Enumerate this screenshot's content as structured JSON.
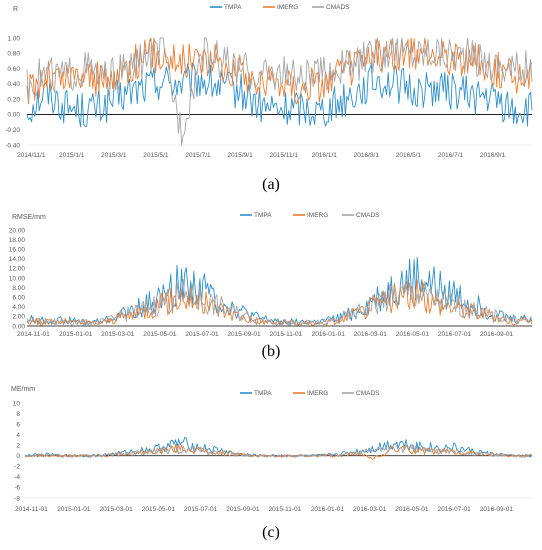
{
  "colors": {
    "TMPA": "#2e8fcc",
    "IMERG": "#ed7d31",
    "CMADS": "#a5a5a5",
    "axis": "#000000",
    "tick_text": "#595959"
  },
  "captions": [
    "(a)",
    "(b)",
    "(c)"
  ],
  "chart_data": [
    {
      "type": "line",
      "title": "",
      "ylabel": "R",
      "ylim": [
        -0.4,
        1.0
      ],
      "yticks": [
        "1.00",
        "0.80",
        "0.60",
        "0.40",
        "0.20",
        "0.00",
        "-0.20",
        "-0.40"
      ],
      "x_range": [
        "2014-11-01",
        "2016-12-31"
      ],
      "xtick_labels": [
        "2014/11/1",
        "2015/1/1",
        "2015/3/1",
        "2015/5/1",
        "2015/7/1",
        "2015/9/1",
        "2015/11/1",
        "2016/1/1",
        "2016/3/1",
        "2016/5/1",
        "2016/7/1",
        "2016/9/1"
      ],
      "legend": "top-center",
      "series": [
        {
          "name": "TMPA",
          "x": [
            "2014-11-01",
            "2014-12-01",
            "2015-01-01",
            "2015-02-01",
            "2015-03-01",
            "2015-04-01",
            "2015-05-01",
            "2015-06-01",
            "2015-07-01",
            "2015-08-01",
            "2015-09-01",
            "2015-10-01",
            "2015-11-01",
            "2015-12-01",
            "2016-01-01",
            "2016-02-01",
            "2016-03-01",
            "2016-04-01",
            "2016-05-01",
            "2016-06-01",
            "2016-07-01",
            "2016-08-01",
            "2016-09-01",
            "2016-10-01",
            "2016-11-01",
            "2016-12-01"
          ],
          "values": [
            0.05,
            0.3,
            0.1,
            0.05,
            0.1,
            0.25,
            0.35,
            0.45,
            0.4,
            0.45,
            0.35,
            0.3,
            0.1,
            0.05,
            0.1,
            0.05,
            0.15,
            0.3,
            0.45,
            0.4,
            0.3,
            0.35,
            0.3,
            0.25,
            0.2,
            0.05
          ]
        },
        {
          "name": "IMERG",
          "x": [
            "2014-11-01",
            "2014-12-01",
            "2015-01-01",
            "2015-02-01",
            "2015-03-01",
            "2015-04-01",
            "2015-05-01",
            "2015-06-01",
            "2015-07-01",
            "2015-08-01",
            "2015-09-01",
            "2015-10-01",
            "2015-11-01",
            "2015-12-01",
            "2016-01-01",
            "2016-02-01",
            "2016-03-01",
            "2016-04-01",
            "2016-05-01",
            "2016-06-01",
            "2016-07-01",
            "2016-08-01",
            "2016-09-01",
            "2016-10-01",
            "2016-11-01",
            "2016-12-01"
          ],
          "values": [
            0.3,
            0.5,
            0.45,
            0.55,
            0.4,
            0.6,
            0.75,
            0.8,
            0.7,
            0.75,
            0.65,
            0.55,
            0.4,
            0.45,
            0.35,
            0.4,
            0.5,
            0.65,
            0.75,
            0.8,
            0.75,
            0.8,
            0.75,
            0.7,
            0.6,
            0.5
          ]
        },
        {
          "name": "CMADS",
          "x": [
            "2014-11-01",
            "2014-12-01",
            "2015-01-01",
            "2015-02-01",
            "2015-03-01",
            "2015-04-01",
            "2015-05-01",
            "2015-06-01",
            "2015-07-01",
            "2015-08-01",
            "2015-09-01",
            "2015-10-01",
            "2015-11-01",
            "2015-12-01",
            "2016-01-01",
            "2016-02-01",
            "2016-03-01",
            "2016-04-01",
            "2016-05-01",
            "2016-06-01",
            "2016-07-01",
            "2016-08-01",
            "2016-09-01",
            "2016-10-01",
            "2016-11-01",
            "2016-12-01"
          ],
          "values": [
            0.4,
            0.55,
            0.5,
            0.6,
            0.45,
            0.55,
            0.7,
            0.85,
            -0.2,
            0.8,
            0.7,
            0.6,
            0.5,
            0.55,
            0.45,
            0.5,
            0.6,
            0.65,
            0.8,
            0.85,
            0.8,
            0.85,
            0.8,
            0.75,
            0.65,
            0.6
          ]
        }
      ]
    },
    {
      "type": "line",
      "title": "",
      "ylabel": "RMSE/mm",
      "ylim": [
        0,
        20
      ],
      "yticks": [
        "20.00",
        "18.00",
        "16.00",
        "14.00",
        "12.00",
        "10.00",
        "8.00",
        "6.00",
        "4.00",
        "2.00",
        "0.00"
      ],
      "x_range": [
        "2014-11-01",
        "2016-12-31"
      ],
      "xtick_labels": [
        "2014-11-01",
        "2015-01-01",
        "2015-03-01",
        "2015-05-01",
        "2015-07-01",
        "2015-09-01",
        "2015-11-01",
        "2016-01-01",
        "2016-03-01",
        "2016-05-01",
        "2016-07-01",
        "2016-09-01"
      ],
      "legend": "top-center",
      "series": [
        {
          "name": "TMPA",
          "x": [
            "2014-11-01",
            "2014-12-01",
            "2015-01-01",
            "2015-02-01",
            "2015-03-01",
            "2015-04-01",
            "2015-05-01",
            "2015-06-01",
            "2015-07-01",
            "2015-08-01",
            "2015-09-01",
            "2015-10-01",
            "2015-11-01",
            "2015-12-01",
            "2016-01-01",
            "2016-02-01",
            "2016-03-01",
            "2016-04-01",
            "2016-05-01",
            "2016-06-01",
            "2016-07-01",
            "2016-08-01",
            "2016-09-01",
            "2016-10-01",
            "2016-11-01",
            "2016-12-01"
          ],
          "values": [
            1.5,
            1.0,
            1.2,
            0.8,
            1.0,
            2.5,
            4.0,
            6.0,
            9.0,
            8.0,
            5.0,
            3.0,
            1.5,
            1.0,
            0.8,
            0.8,
            1.5,
            3.0,
            5.5,
            8.0,
            10.0,
            8.0,
            6.5,
            4.5,
            2.5,
            1.5
          ]
        },
        {
          "name": "IMERG",
          "x": [
            "2014-11-01",
            "2014-12-01",
            "2015-01-01",
            "2015-02-01",
            "2015-03-01",
            "2015-04-01",
            "2015-05-01",
            "2015-06-01",
            "2015-07-01",
            "2015-08-01",
            "2015-09-01",
            "2015-10-01",
            "2015-11-01",
            "2015-12-01",
            "2016-01-01",
            "2016-02-01",
            "2016-03-01",
            "2016-04-01",
            "2016-05-01",
            "2016-06-01",
            "2016-07-01",
            "2016-08-01",
            "2016-09-01",
            "2016-10-01",
            "2016-11-01",
            "2016-12-01"
          ],
          "values": [
            1.0,
            0.8,
            0.9,
            0.6,
            0.8,
            2.0,
            3.0,
            4.5,
            6.0,
            5.0,
            3.5,
            2.0,
            1.0,
            0.7,
            0.5,
            0.6,
            1.0,
            2.5,
            4.5,
            6.0,
            6.5,
            5.0,
            4.0,
            3.0,
            2.0,
            1.0
          ]
        },
        {
          "name": "CMADS",
          "x": [
            "2014-11-01",
            "2014-12-01",
            "2015-01-01",
            "2015-02-01",
            "2015-03-01",
            "2015-04-01",
            "2015-05-01",
            "2015-06-01",
            "2015-07-01",
            "2015-08-01",
            "2015-09-01",
            "2015-10-01",
            "2015-11-01",
            "2015-12-01",
            "2016-01-01",
            "2016-02-01",
            "2016-03-01",
            "2016-04-01",
            "2016-05-01",
            "2016-06-01",
            "2016-07-01",
            "2016-08-01",
            "2016-09-01",
            "2016-10-01",
            "2016-11-01",
            "2016-12-01"
          ],
          "values": [
            1.2,
            0.9,
            1.0,
            0.7,
            0.9,
            2.2,
            3.5,
            5.0,
            6.5,
            5.5,
            4.0,
            2.5,
            1.2,
            0.8,
            0.6,
            0.7,
            1.2,
            2.8,
            4.8,
            6.2,
            7.0,
            5.5,
            4.5,
            3.2,
            2.2,
            1.2
          ]
        }
      ]
    },
    {
      "type": "line",
      "title": "",
      "ylabel": "ME/mm",
      "ylim": [
        -8,
        10
      ],
      "yticks": [
        "10",
        "8",
        "6",
        "4",
        "2",
        "0",
        "-2",
        "-4",
        "-6",
        "-8"
      ],
      "x_range": [
        "2014-11-01",
        "2016-12-31"
      ],
      "xtick_labels": [
        "2014-11-01",
        "2015-01-01",
        "2015-03-01",
        "2015-05-01",
        "2015-07-01",
        "2015-09-01",
        "2015-11-01",
        "2016-01-01",
        "2016-03-01",
        "2016-05-01",
        "2016-07-01",
        "2016-09-01"
      ],
      "legend": "top-center",
      "series": [
        {
          "name": "TMPA",
          "x": [
            "2014-11-01",
            "2014-12-01",
            "2015-01-01",
            "2015-02-01",
            "2015-03-01",
            "2015-04-01",
            "2015-05-01",
            "2015-06-01",
            "2015-07-01",
            "2015-08-01",
            "2015-09-01",
            "2015-10-01",
            "2015-11-01",
            "2015-12-01",
            "2016-01-01",
            "2016-02-01",
            "2016-03-01",
            "2016-04-01",
            "2016-05-01",
            "2016-06-01",
            "2016-07-01",
            "2016-08-01",
            "2016-09-01",
            "2016-10-01",
            "2016-11-01",
            "2016-12-01"
          ],
          "values": [
            0,
            0.2,
            0,
            0,
            0.1,
            0.5,
            1.0,
            1.5,
            2.5,
            1.5,
            1.0,
            0.3,
            0,
            0,
            0,
            0,
            0.2,
            0.8,
            1.5,
            2.5,
            2.0,
            1.5,
            1.5,
            0.8,
            0.3,
            0
          ]
        },
        {
          "name": "IMERG",
          "x": [
            "2014-11-01",
            "2014-12-01",
            "2015-01-01",
            "2015-02-01",
            "2015-03-01",
            "2015-04-01",
            "2015-05-01",
            "2015-06-01",
            "2015-07-01",
            "2015-08-01",
            "2015-09-01",
            "2015-10-01",
            "2015-11-01",
            "2015-12-01",
            "2016-01-01",
            "2016-02-01",
            "2016-03-01",
            "2016-04-01",
            "2016-05-01",
            "2016-06-01",
            "2016-07-01",
            "2016-08-01",
            "2016-09-01",
            "2016-10-01",
            "2016-11-01",
            "2016-12-01"
          ],
          "values": [
            0,
            0,
            0,
            0,
            0,
            0.3,
            0.5,
            1.0,
            1.5,
            1.0,
            0.5,
            0.2,
            0,
            0,
            0,
            0,
            0,
            0.5,
            -0.5,
            1.5,
            1.0,
            0.8,
            0.8,
            0.5,
            0.2,
            0
          ]
        },
        {
          "name": "CMADS",
          "x": [
            "2014-11-01",
            "2014-12-01",
            "2015-01-01",
            "2015-02-01",
            "2015-03-01",
            "2015-04-01",
            "2015-05-01",
            "2015-06-01",
            "2015-07-01",
            "2015-08-01",
            "2015-09-01",
            "2015-10-01",
            "2015-11-01",
            "2015-12-01",
            "2016-01-01",
            "2016-02-01",
            "2016-03-01",
            "2016-04-01",
            "2016-05-01",
            "2016-06-01",
            "2016-07-01",
            "2016-08-01",
            "2016-09-01",
            "2016-10-01",
            "2016-11-01",
            "2016-12-01"
          ],
          "values": [
            0,
            0.1,
            0,
            0,
            0,
            0.3,
            0.6,
            1.0,
            1.2,
            1.0,
            0.6,
            0.2,
            0,
            0,
            0,
            0,
            0.1,
            0.5,
            1.0,
            1.5,
            1.2,
            0.8,
            0.8,
            0.5,
            0.2,
            0
          ]
        }
      ]
    }
  ]
}
